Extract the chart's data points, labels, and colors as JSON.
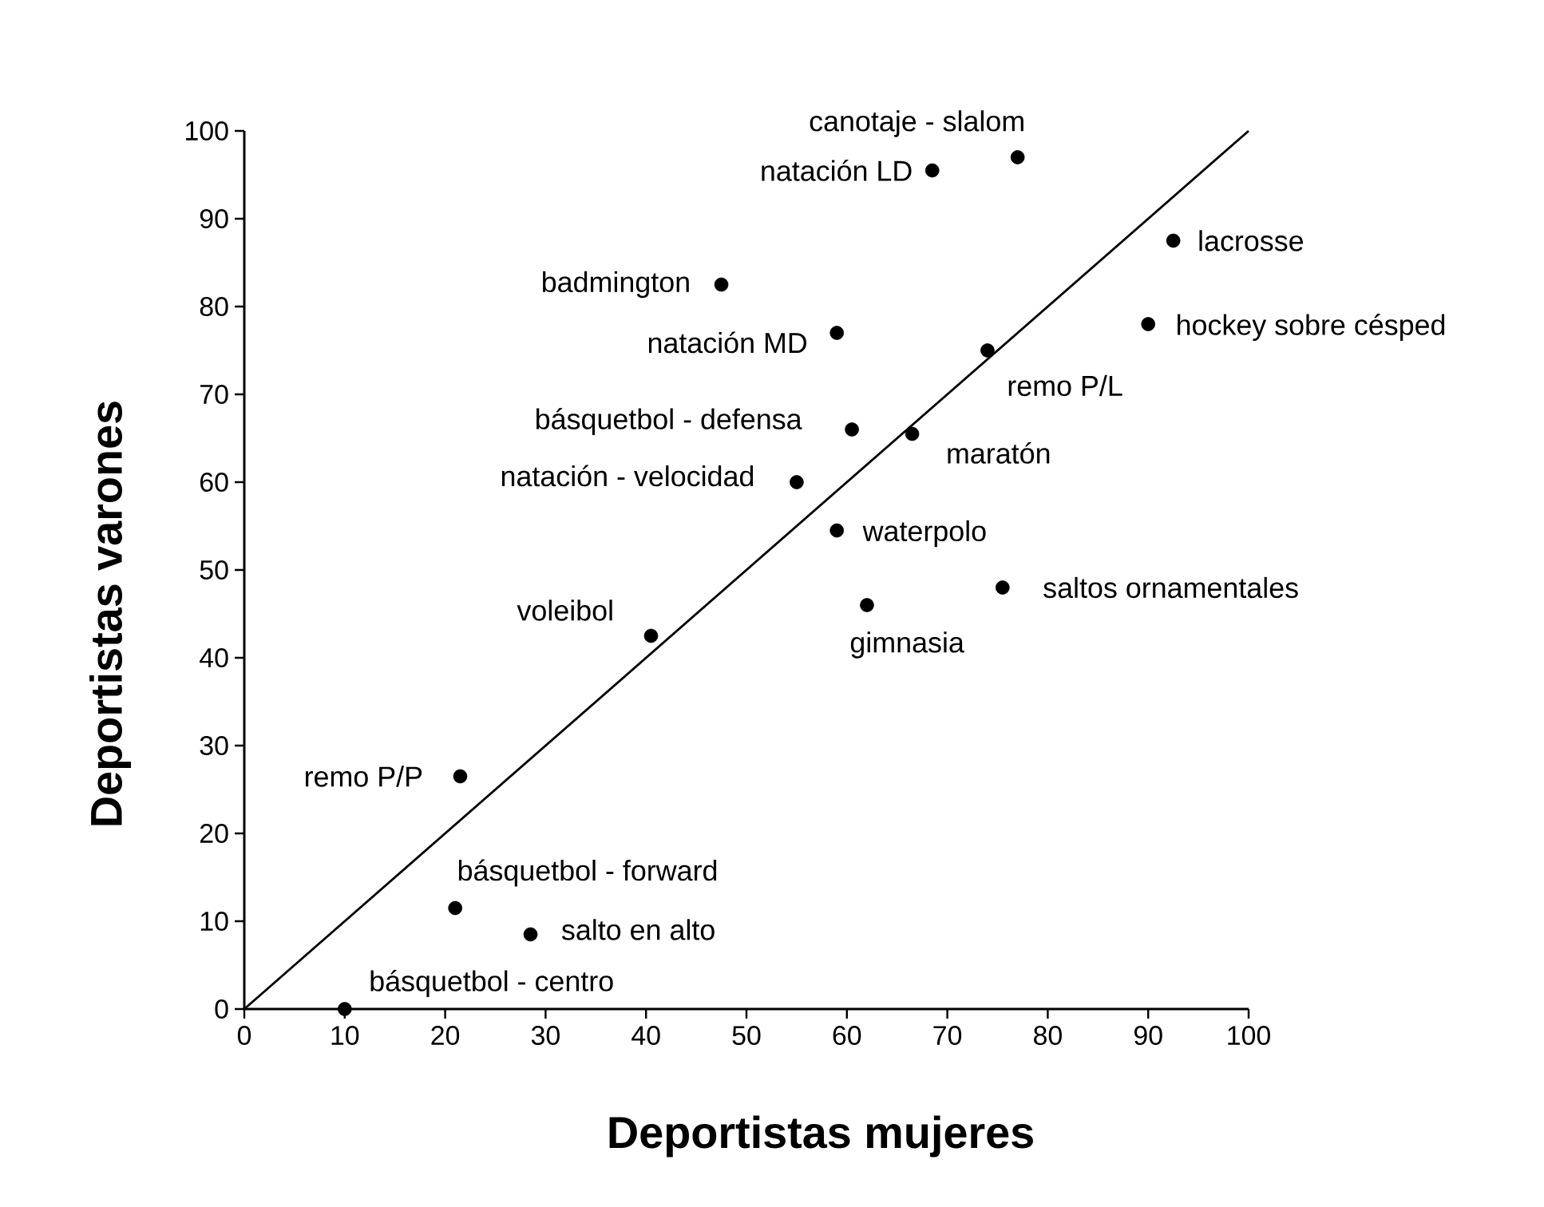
{
  "chart_data": {
    "type": "scatter",
    "xlabel": "Deportistas mujeres",
    "ylabel": "Deportistas varones",
    "xlim": [
      0,
      100
    ],
    "ylim": [
      0,
      100
    ],
    "xticks": [
      0,
      10,
      20,
      30,
      40,
      50,
      60,
      70,
      80,
      90,
      100
    ],
    "yticks": [
      0,
      10,
      20,
      30,
      40,
      50,
      60,
      70,
      80,
      90,
      100
    ],
    "marker": "circle",
    "series": [
      {
        "color": "#000000",
        "x": [
          77,
          68.5,
          92.5,
          90,
          74,
          66.5,
          47.5,
          59,
          60.5,
          55,
          59,
          62,
          75.5,
          40.5,
          21.5,
          21,
          28.5,
          10
        ],
        "values": [
          97,
          95.5,
          87.5,
          78,
          75,
          65.5,
          82.5,
          77,
          66,
          60,
          54.5,
          46,
          48,
          42.5,
          26.5,
          11.5,
          8.5,
          0
        ]
      },
      {
        "type": "line",
        "color": "#000000",
        "marker": "none",
        "x": [
          0,
          100
        ],
        "values": [
          0,
          100
        ]
      }
    ],
    "annotations": [
      {
        "text": "canotaje - slalom",
        "x": 77,
        "y": 97
      },
      {
        "text": "natación LD",
        "x": 68.5,
        "y": 95.5
      },
      {
        "text": "lacrosse",
        "x": 92.5,
        "y": 87.5
      },
      {
        "text": "hockey sobre césped",
        "x": 90,
        "y": 78
      },
      {
        "text": "remo P/L",
        "x": 74,
        "y": 75
      },
      {
        "text": "maratón",
        "x": 66.5,
        "y": 65.5
      },
      {
        "text": "badmington",
        "x": 47.5,
        "y": 82.5
      },
      {
        "text": "natación MD",
        "x": 59,
        "y": 77
      },
      {
        "text": "básquetbol - defensa",
        "x": 60.5,
        "y": 66
      },
      {
        "text": "natación - velocidad",
        "x": 55,
        "y": 60
      },
      {
        "text": "waterpolo",
        "x": 59,
        "y": 54.5
      },
      {
        "text": "gimnasia",
        "x": 62,
        "y": 46
      },
      {
        "text": "saltos ornamentales",
        "x": 75.5,
        "y": 48
      },
      {
        "text": "voleibol",
        "x": 40.5,
        "y": 42.5
      },
      {
        "text": "remo P/P",
        "x": 21.5,
        "y": 26.5
      },
      {
        "text": "básquetbol - forward",
        "x": 21,
        "y": 11.5
      },
      {
        "text": "salto en alto",
        "x": 28.5,
        "y": 8.5
      },
      {
        "text": "básquetbol - centro",
        "x": 10,
        "y": 0
      }
    ]
  }
}
